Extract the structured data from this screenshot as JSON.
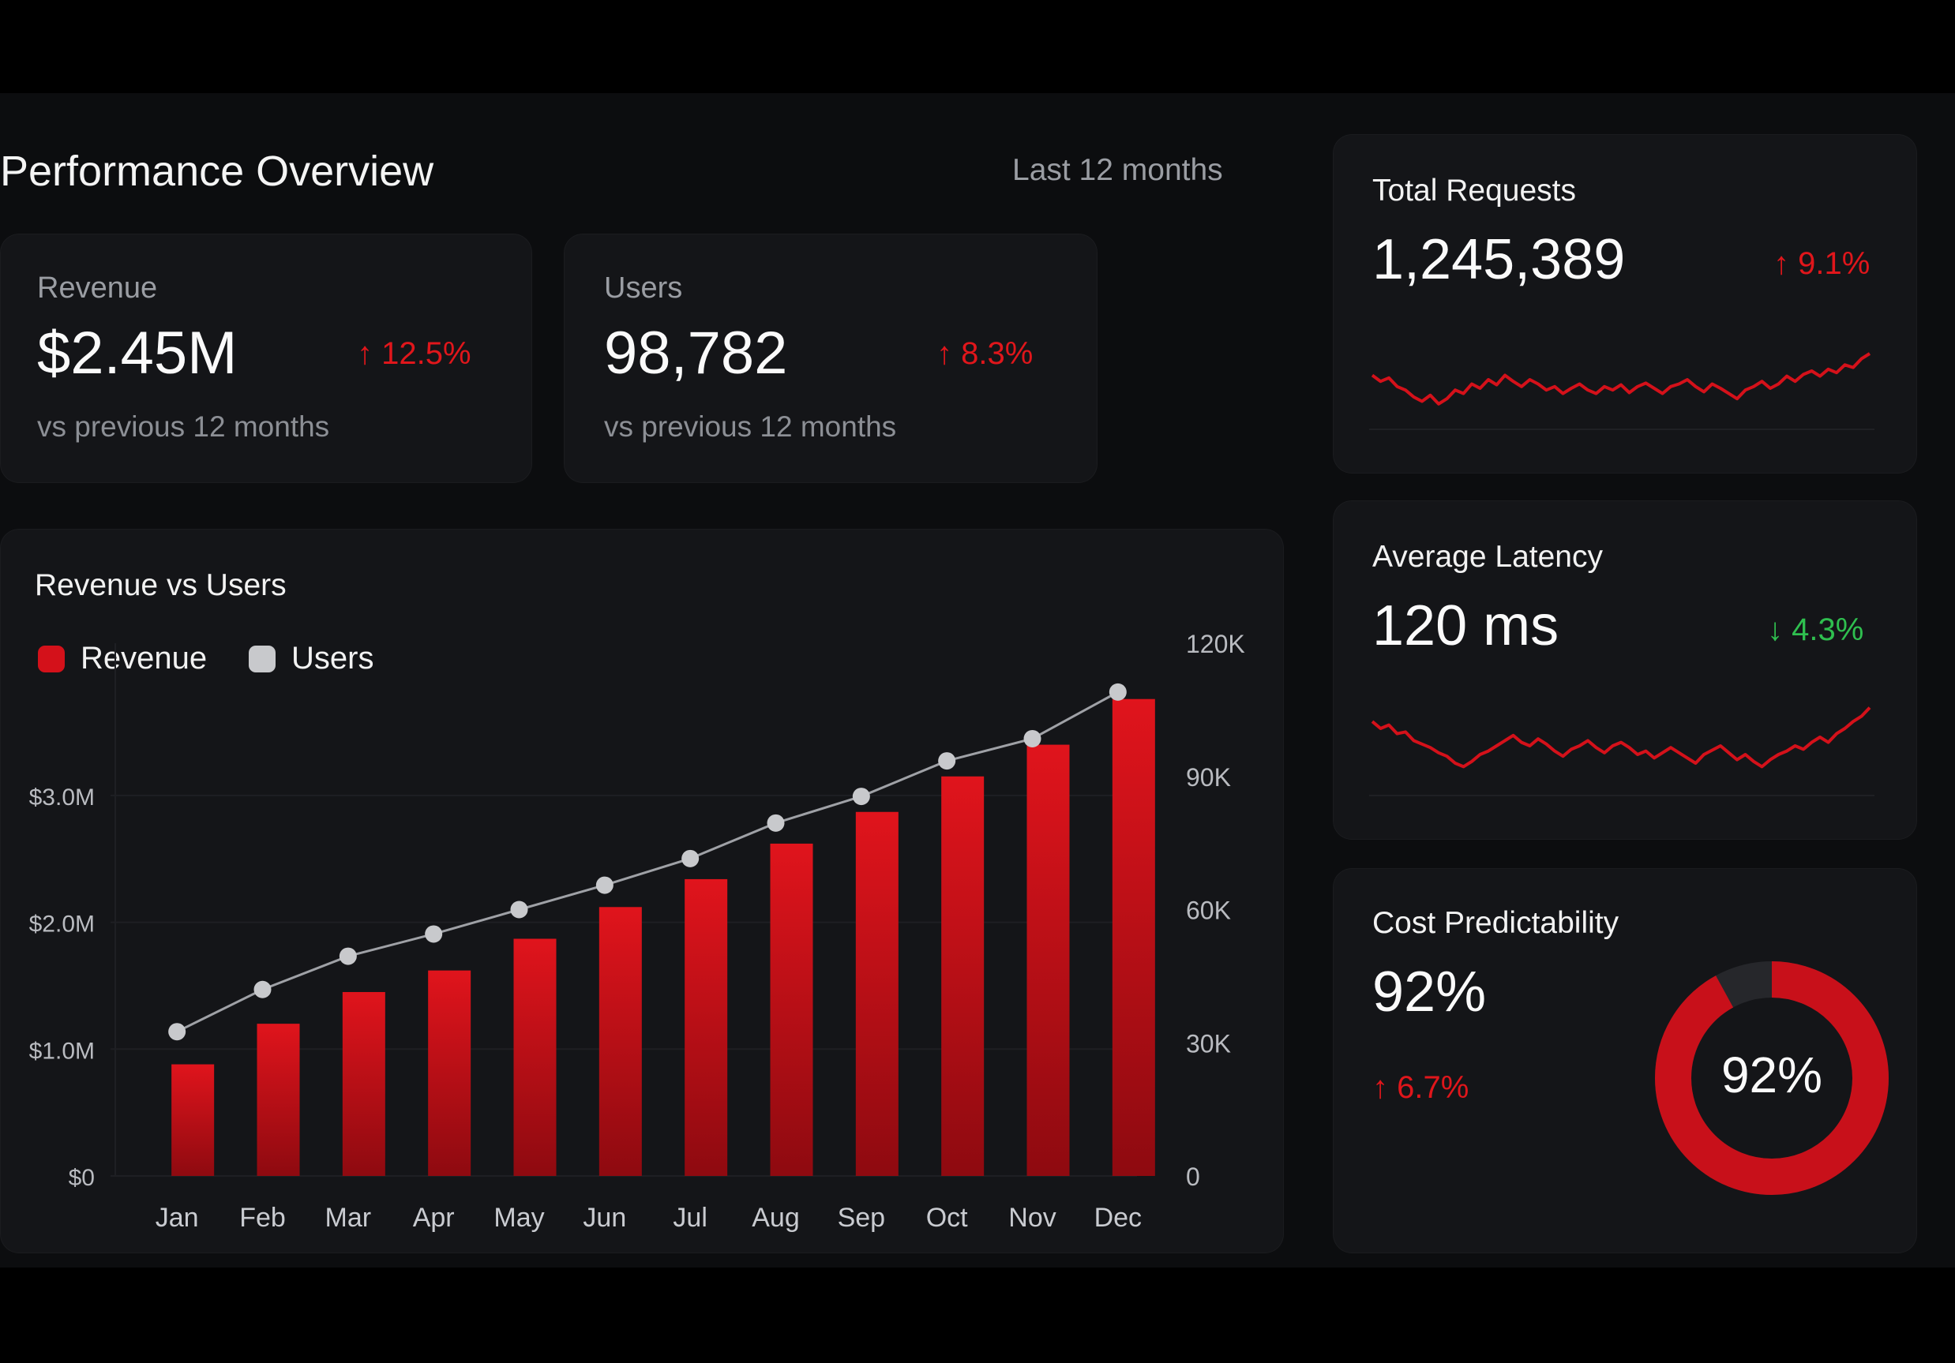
{
  "header": {
    "title": "Performance Overview",
    "range_label": "Last 12 months"
  },
  "kpis": [
    {
      "label": "Revenue",
      "value": "$2.45M",
      "delta": "↑ 12.5%",
      "sub": "vs previous 12 months"
    },
    {
      "label": "Users",
      "value": "98,782",
      "delta": "↑ 8.3%",
      "sub": "vs previous 12 months"
    }
  ],
  "side_cards": {
    "requests": {
      "title": "Total Requests",
      "value": "1,245,389",
      "delta": "↑ 9.1%"
    },
    "latency": {
      "title": "Average Latency",
      "value": "120 ms",
      "delta": "↓ 4.3%"
    },
    "cost": {
      "title": "Cost Predictability",
      "value": "92%",
      "delta": "↑ 6.7%",
      "gauge_label": "92%",
      "gauge_fraction": 0.92
    }
  },
  "colors": {
    "accent_red": "#d4111a",
    "users_gray": "#c8c9cc",
    "positive_green": "#2fbf4f"
  },
  "chart_data": {
    "type": "bar",
    "title": "Revenue vs Users",
    "categories": [
      "Jan",
      "Feb",
      "Mar",
      "Apr",
      "May",
      "Jun",
      "Jul",
      "Aug",
      "Sep",
      "Oct",
      "Nov",
      "Dec"
    ],
    "series": [
      {
        "name": "Revenue",
        "type": "bar",
        "axis": "left",
        "values": [
          0.88,
          1.2,
          1.45,
          1.62,
          1.87,
          2.12,
          2.34,
          2.62,
          2.87,
          3.15,
          3.4,
          3.76
        ]
      },
      {
        "name": "Users",
        "type": "line",
        "axis": "right",
        "values": [
          32500,
          42000,
          49500,
          54500,
          60000,
          65500,
          71500,
          79500,
          85500,
          93500,
          98500,
          109000
        ]
      }
    ],
    "left_axis": {
      "ticks": [
        "$0",
        "$1.0M",
        "$2.0M",
        "$3.0M"
      ],
      "tick_values": [
        0,
        1,
        2,
        3
      ],
      "ylim": [
        0,
        4.2
      ]
    },
    "right_axis": {
      "ticks": [
        "0",
        "30K",
        "60K",
        "90K",
        "120K"
      ],
      "tick_values": [
        0,
        30000,
        60000,
        90000,
        120000
      ],
      "ylim": [
        0,
        120000
      ]
    },
    "legend": [
      "Revenue",
      "Users"
    ],
    "legend_position": "top-left",
    "grid": true
  },
  "sparklines": {
    "requests": [
      0.45,
      0.52,
      0.48,
      0.58,
      0.62,
      0.7,
      0.75,
      0.68,
      0.78,
      0.72,
      0.62,
      0.66,
      0.55,
      0.6,
      0.5,
      0.56,
      0.45,
      0.52,
      0.58,
      0.5,
      0.55,
      0.62,
      0.58,
      0.66,
      0.6,
      0.55,
      0.62,
      0.66,
      0.58,
      0.62,
      0.56,
      0.65,
      0.58,
      0.54,
      0.6,
      0.66,
      0.58,
      0.55,
      0.5,
      0.58,
      0.64,
      0.55,
      0.6,
      0.66,
      0.72,
      0.62,
      0.58,
      0.52,
      0.6,
      0.55,
      0.46,
      0.52,
      0.44,
      0.4,
      0.46,
      0.38,
      0.42,
      0.33,
      0.36,
      0.26,
      0.2
    ],
    "latency": [
      0.22,
      0.3,
      0.26,
      0.36,
      0.34,
      0.44,
      0.48,
      0.52,
      0.58,
      0.62,
      0.7,
      0.74,
      0.68,
      0.6,
      0.56,
      0.5,
      0.44,
      0.38,
      0.46,
      0.5,
      0.42,
      0.48,
      0.56,
      0.62,
      0.54,
      0.5,
      0.44,
      0.52,
      0.58,
      0.5,
      0.46,
      0.52,
      0.6,
      0.56,
      0.64,
      0.58,
      0.52,
      0.58,
      0.64,
      0.7,
      0.6,
      0.55,
      0.5,
      0.58,
      0.66,
      0.6,
      0.68,
      0.74,
      0.66,
      0.6,
      0.56,
      0.5,
      0.54,
      0.46,
      0.4,
      0.46,
      0.36,
      0.3,
      0.22,
      0.16,
      0.06
    ]
  }
}
